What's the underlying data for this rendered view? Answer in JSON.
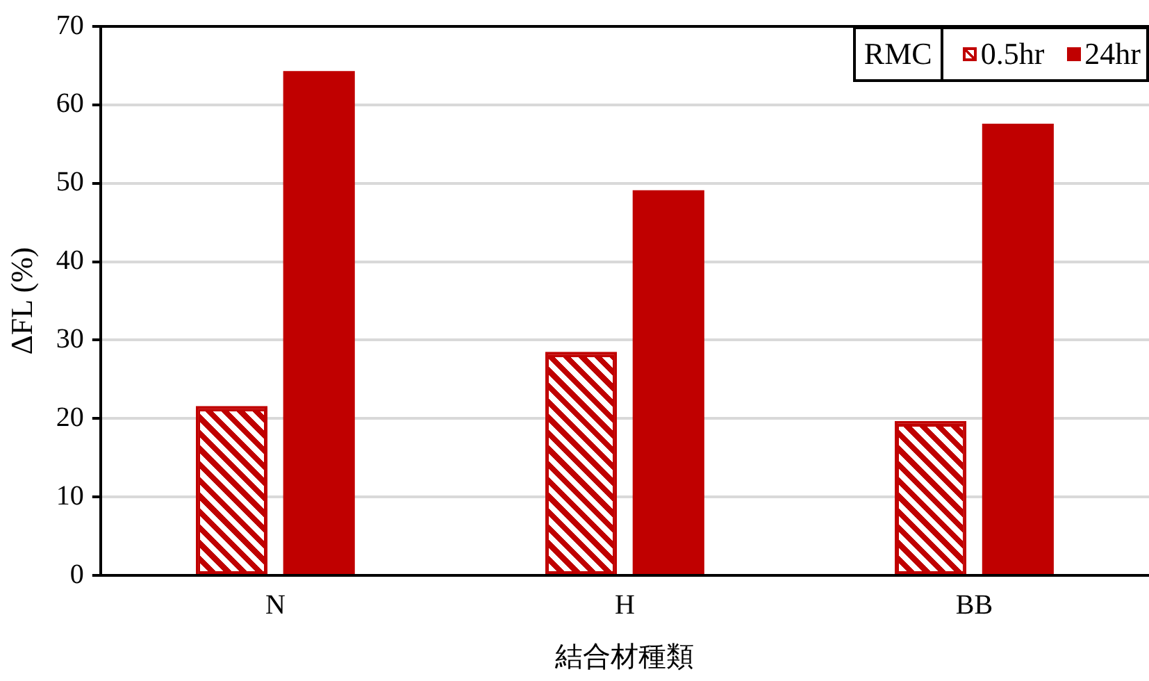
{
  "chart_data": {
    "type": "bar",
    "xlabel": "結合材種類",
    "ylabel": "ΔFL (%)",
    "legend_title": "RMC",
    "categories": [
      "N",
      "H",
      "BB"
    ],
    "series": [
      {
        "name": "0.5hr",
        "color": "#c00000",
        "values": [
          21.6,
          28.5,
          19.7
        ]
      },
      {
        "name": "24hr",
        "color": "#c00000",
        "values": [
          64.3,
          49.1,
          57.6
        ]
      }
    ],
    "ylim": [
      0,
      70
    ],
    "yticks": [
      0,
      10,
      20,
      30,
      40,
      50,
      60,
      70
    ],
    "grid": "y",
    "legend": "top right"
  }
}
